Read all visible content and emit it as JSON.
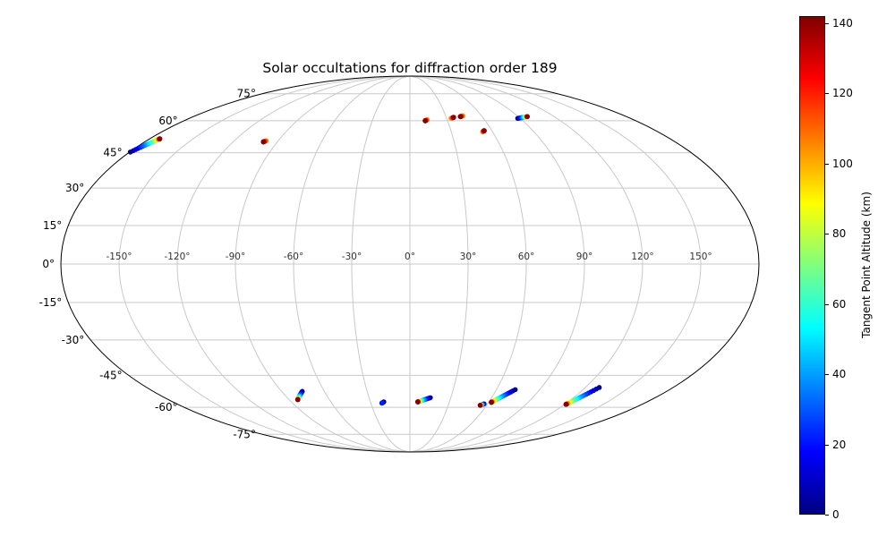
{
  "chart_data": {
    "type": "scatter",
    "projection": "mollweide",
    "title": "Solar occultations for diffraction order 189",
    "grid": {
      "on": true,
      "color": "#c9c9c9",
      "parallels_deg": [
        -75,
        -60,
        -45,
        -30,
        -15,
        0,
        15,
        30,
        45,
        60,
        75
      ],
      "meridians_deg": [
        -150,
        -120,
        -90,
        -60,
        -30,
        0,
        30,
        60,
        90,
        120,
        150
      ]
    },
    "axis": {
      "lat_ticks": [
        {
          "lat": 75,
          "label": "75°"
        },
        {
          "lat": 60,
          "label": "60°"
        },
        {
          "lat": 45,
          "label": "45°"
        },
        {
          "lat": 30,
          "label": "30°"
        },
        {
          "lat": 15,
          "label": "15°"
        },
        {
          "lat": 0,
          "label": "0°"
        },
        {
          "lat": -15,
          "label": "-15°"
        },
        {
          "lat": -30,
          "label": "-30°"
        },
        {
          "lat": -45,
          "label": "-45°"
        },
        {
          "lat": -60,
          "label": "-60°"
        },
        {
          "lat": -75,
          "label": "-75°"
        }
      ],
      "lon_ticks": [
        {
          "lon": -150,
          "label": "-150°"
        },
        {
          "lon": -120,
          "label": "-120°"
        },
        {
          "lon": -90,
          "label": "-90°"
        },
        {
          "lon": -60,
          "label": "-60°"
        },
        {
          "lon": -30,
          "label": "-30°"
        },
        {
          "lon": 0,
          "label": "0°"
        },
        {
          "lon": 30,
          "label": "30°"
        },
        {
          "lon": 60,
          "label": "60°"
        },
        {
          "lon": 90,
          "label": "90°"
        },
        {
          "lon": 120,
          "label": "120°"
        },
        {
          "lon": 150,
          "label": "150°"
        }
      ]
    },
    "colorbar": {
      "label": "Tangent Point Altitude (km)",
      "ticks": [
        0,
        20,
        40,
        60,
        80,
        100,
        120,
        140
      ],
      "vmin": 0,
      "vmax": 142,
      "colormap": "jet"
    },
    "colormap_stops": [
      [
        0.0,
        "#000083"
      ],
      [
        0.125,
        "#0000ff"
      ],
      [
        0.375,
        "#00ffff"
      ],
      [
        0.625,
        "#ffff00"
      ],
      [
        0.875,
        "#ff0000"
      ],
      [
        1.0,
        "#800000"
      ]
    ],
    "tracks": [
      {
        "lon": [
          -179.5,
          -173.0
        ],
        "lat": [
          45.3,
          51.3
        ],
        "alt": [
          0,
          141
        ],
        "n": 26
      },
      {
        "lon": [
          -98.2,
          -99.4
        ],
        "lat": [
          50.4,
          49.9
        ],
        "alt": [
          105,
          141
        ],
        "n": 14
      },
      {
        "lon": [
          13.8,
          12.2
        ],
        "lat": [
          60.5,
          60.0
        ],
        "alt": [
          105,
          141
        ],
        "n": 14
      },
      {
        "lon": [
          33.5,
          36.0
        ],
        "lat": [
          61.2,
          61.7
        ],
        "alt": [
          100,
          141
        ],
        "n": 14
      },
      {
        "lon": [
          44.5,
          42.0
        ],
        "lat": [
          62.5,
          62.1
        ],
        "alt": [
          100,
          141
        ],
        "n": 14
      },
      {
        "lon": [
          52.8,
          54.3
        ],
        "lat": [
          54.6,
          55.1
        ],
        "alt": [
          105,
          141
        ],
        "n": 14
      },
      {
        "lon": [
          88.0,
          97.5
        ],
        "lat": [
          61.2,
          62.1
        ],
        "alt": [
          0,
          141
        ],
        "n": 22
      },
      {
        "lon": [
          -75.5,
          -83.5
        ],
        "lat": [
          -52.3,
          -56.2
        ],
        "alt": [
          0,
          141
        ],
        "n": 22
      },
      {
        "lon": [
          -19.8,
          -21.5
        ],
        "lat": [
          -57.3,
          -57.9
        ],
        "alt": [
          0,
          22
        ],
        "n": 6
      },
      {
        "lon": [
          15.0,
          6.0
        ],
        "lat": [
          -55.3,
          -57.3
        ],
        "alt": [
          0,
          141
        ],
        "n": 22
      },
      {
        "lon": [
          57.2,
          55.0
        ],
        "lat": [
          -58.3,
          -59.0
        ],
        "alt": [
          0,
          141
        ],
        "n": 12
      },
      {
        "lon": [
          73.0,
          62.0
        ],
        "lat": [
          -51.5,
          -57.5
        ],
        "alt": [
          0,
          141
        ],
        "n": 26
      },
      {
        "lon": [
          129.5,
          121.0
        ],
        "lat": [
          -50.5,
          -58.5
        ],
        "alt": [
          0,
          141
        ],
        "n": 28
      }
    ]
  }
}
